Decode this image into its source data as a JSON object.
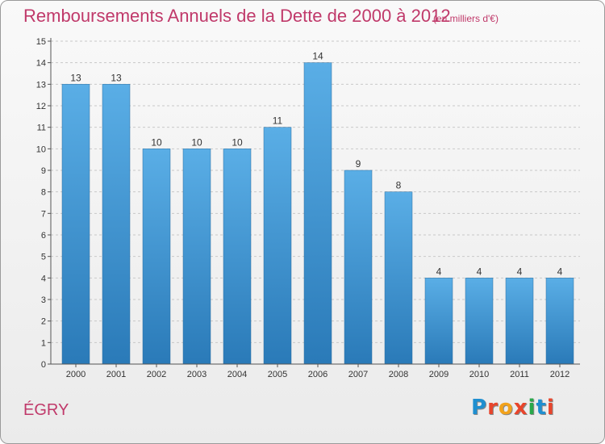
{
  "title": "Remboursements Annuels de la Dette de 2000 à 2012",
  "unit_note": "(en milliers d'€)",
  "commune": "ÉGRY",
  "logo": {
    "text": "Proxiti",
    "letter_colors": [
      "#1f8fd0",
      "#e8452c",
      "#f2a21b",
      "#e8452c",
      "#29a84a",
      "#1f8fd0",
      "#e8452c"
    ]
  },
  "chart_data": {
    "type": "bar",
    "title": "Remboursements Annuels de la Dette de 2000 à 2012",
    "categories": [
      "2000",
      "2001",
      "2002",
      "2003",
      "2004",
      "2005",
      "2006",
      "2007",
      "2008",
      "2009",
      "2010",
      "2011",
      "2012"
    ],
    "values": [
      13,
      13,
      10,
      10,
      10,
      11,
      14,
      9,
      8,
      4,
      4,
      4,
      4
    ],
    "ylim": [
      0,
      15
    ],
    "yticks": [
      0,
      1,
      2,
      3,
      4,
      5,
      6,
      7,
      8,
      9,
      10,
      11,
      12,
      13,
      14,
      15
    ],
    "xlabel": "",
    "ylabel": "",
    "bar_color_top": "#5aaee6",
    "bar_color_bottom": "#2a7ab8",
    "data_labels": true
  }
}
